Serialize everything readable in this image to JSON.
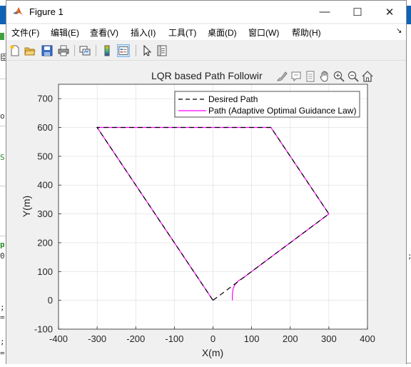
{
  "window": {
    "title": "Figure 1",
    "minimize_glyph": "—",
    "maximize_glyph": "☐",
    "close_glyph": "✕"
  },
  "menus": [
    {
      "label": "文件(F)"
    },
    {
      "label": "编辑(E)"
    },
    {
      "label": "查看(V)"
    },
    {
      "label": "插入(I)"
    },
    {
      "label": "工具(T)"
    },
    {
      "label": "桌面(D)"
    },
    {
      "label": "窗口(W)"
    },
    {
      "label": "帮助(H)"
    }
  ],
  "menu_overflow": "↘",
  "toolbar": [
    {
      "icon": "new-figure-icon"
    },
    {
      "icon": "open-file-icon"
    },
    {
      "icon": "save-icon"
    },
    {
      "icon": "print-icon"
    },
    {
      "icon": "link-plot-icon"
    },
    {
      "icon": "insert-colorbar-icon"
    },
    {
      "icon": "insert-legend-icon"
    },
    {
      "icon": "edit-plot-icon"
    },
    {
      "icon": "property-inspector-icon"
    }
  ],
  "axes_toolbar": [
    "brush-icon",
    "data-tips-icon",
    "pan-icon",
    "zoom-in-icon",
    "zoom-out-icon",
    "home-icon"
  ],
  "background_app": {
    "side_labels": [
      "臣",
      "or",
      "S",
      "p",
      "0",
      ";",
      "=",
      ";",
      "="
    ],
    "right_label": ";"
  },
  "colors": {
    "desired": "#000000",
    "actual": "#ff00ff",
    "axes_bg": "#ffffff",
    "grid": "#e0e0e0"
  },
  "chart_data": {
    "type": "line",
    "title": "LQR based Path Followir",
    "xlabel": "X(m)",
    "ylabel": "Y(m)",
    "xlim": [
      -400,
      400
    ],
    "ylim": [
      -100,
      750
    ],
    "xticks": [
      -400,
      -300,
      -200,
      -100,
      0,
      100,
      200,
      300,
      400
    ],
    "yticks": [
      -100,
      0,
      100,
      200,
      300,
      400,
      500,
      600,
      700
    ],
    "grid": true,
    "legend_position": "top-right",
    "series": [
      {
        "name": "Desired Path",
        "style": "dashed",
        "color": "#000000",
        "x": [
          0,
          300,
          150,
          -300,
          0
        ],
        "y": [
          0,
          300,
          600,
          600,
          0
        ]
      },
      {
        "name": "Path (Adaptive Optimal Guidance Law)",
        "style": "solid",
        "color": "#ff00ff",
        "x": [
          50,
          50,
          52,
          57,
          66,
          80,
          300,
          150,
          -300,
          0
        ],
        "y": [
          0,
          20,
          40,
          55,
          68,
          80,
          300,
          600,
          600,
          0
        ]
      }
    ]
  }
}
